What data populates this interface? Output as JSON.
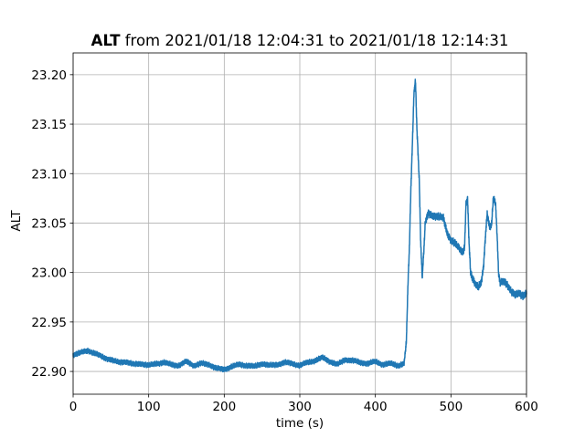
{
  "chart_data": {
    "type": "line",
    "title_bold": "ALT",
    "title_rest": " from 2021/01/18 12:04:31 to 2021/01/18 12:14:31",
    "xlabel": "time (s)",
    "ylabel": "ALT",
    "xlim": [
      0,
      600
    ],
    "ylim": [
      22.877,
      23.222
    ],
    "xticks": [
      0,
      100,
      200,
      300,
      400,
      500,
      600
    ],
    "yticks": [
      22.9,
      22.95,
      23.0,
      23.05,
      23.1,
      23.15,
      23.2
    ],
    "xtick_labels": [
      "0",
      "100",
      "200",
      "300",
      "400",
      "500",
      "600"
    ],
    "ytick_labels": [
      "22.90",
      "22.95",
      "23.00",
      "23.05",
      "23.10",
      "23.15",
      "23.20"
    ],
    "grid": true,
    "line_color": "#1f77b4",
    "series": [
      {
        "x": [
          0,
          10,
          20,
          30,
          40,
          50,
          60,
          70,
          80,
          90,
          100,
          110,
          120,
          130,
          140,
          150,
          160,
          170,
          180,
          190,
          200,
          210,
          220,
          230,
          240,
          250,
          260,
          270,
          280,
          290,
          300,
          310,
          320,
          330,
          340,
          350,
          360,
          370,
          380,
          390,
          400,
          410,
          420,
          430,
          438,
          441,
          443,
          445,
          447,
          449,
          451,
          453,
          455,
          458,
          460,
          462,
          464,
          466,
          470,
          475,
          480,
          485,
          490,
          495,
          500,
          505,
          510,
          515,
          518,
          520,
          522,
          524,
          526,
          528,
          532,
          536,
          540,
          543,
          546,
          548,
          550,
          552,
          554,
          556,
          559,
          561,
          563,
          565,
          568,
          572,
          576,
          580,
          585,
          590,
          595,
          600
        ],
        "y": [
          22.917,
          22.919,
          22.921,
          22.918,
          22.914,
          22.912,
          22.909,
          22.91,
          22.907,
          22.908,
          22.906,
          22.908,
          22.909,
          22.907,
          22.906,
          22.91,
          22.906,
          22.908,
          22.907,
          22.903,
          22.902,
          22.905,
          22.907,
          22.906,
          22.905,
          22.908,
          22.906,
          22.907,
          22.909,
          22.908,
          22.906,
          22.909,
          22.911,
          22.914,
          22.91,
          22.907,
          22.912,
          22.911,
          22.909,
          22.908,
          22.91,
          22.907,
          22.908,
          22.906,
          22.908,
          22.93,
          22.985,
          23.025,
          23.085,
          23.13,
          23.18,
          23.195,
          23.145,
          23.095,
          23.03,
          22.995,
          23.02,
          23.05,
          23.06,
          23.058,
          23.057,
          23.056,
          23.055,
          23.04,
          23.033,
          23.03,
          23.025,
          23.02,
          23.025,
          23.07,
          23.075,
          23.03,
          23.0,
          22.995,
          22.988,
          22.985,
          22.99,
          23.005,
          23.04,
          23.06,
          23.05,
          23.045,
          23.05,
          23.075,
          23.07,
          23.04,
          23.0,
          22.99,
          22.992,
          22.99,
          22.985,
          22.98,
          22.978,
          22.98,
          22.976,
          22.978
        ]
      }
    ]
  }
}
